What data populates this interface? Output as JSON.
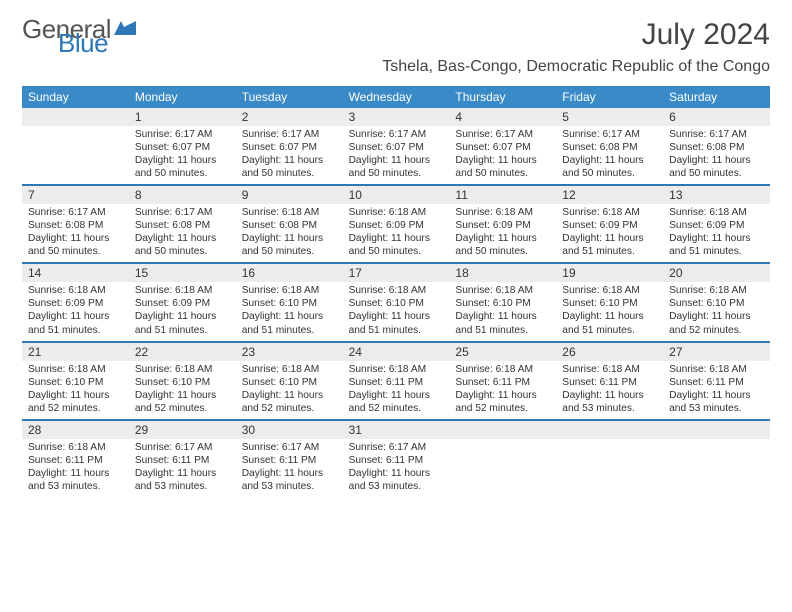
{
  "brand": {
    "part1": "General",
    "part2": "Blue"
  },
  "title": "July 2024",
  "location": "Tshela, Bas-Congo, Democratic Republic of the Congo",
  "colors": {
    "header_bg": "#3a8ac7",
    "border": "#2f78b8",
    "daynum_bg": "#ececec",
    "text": "#333333",
    "logo_gray": "#555555",
    "logo_blue": "#2f78b8",
    "background": "#ffffff"
  },
  "fonts": {
    "title_size_pt": 22,
    "location_size_pt": 12,
    "dow_size_pt": 9,
    "daynum_size_pt": 9,
    "info_size_pt": 7.5
  },
  "dow": [
    "Sunday",
    "Monday",
    "Tuesday",
    "Wednesday",
    "Thursday",
    "Friday",
    "Saturday"
  ],
  "weeks": [
    [
      {
        "n": "",
        "sr": "",
        "ss": "",
        "dl": ""
      },
      {
        "n": "1",
        "sr": "Sunrise: 6:17 AM",
        "ss": "Sunset: 6:07 PM",
        "dl": "Daylight: 11 hours and 50 minutes."
      },
      {
        "n": "2",
        "sr": "Sunrise: 6:17 AM",
        "ss": "Sunset: 6:07 PM",
        "dl": "Daylight: 11 hours and 50 minutes."
      },
      {
        "n": "3",
        "sr": "Sunrise: 6:17 AM",
        "ss": "Sunset: 6:07 PM",
        "dl": "Daylight: 11 hours and 50 minutes."
      },
      {
        "n": "4",
        "sr": "Sunrise: 6:17 AM",
        "ss": "Sunset: 6:07 PM",
        "dl": "Daylight: 11 hours and 50 minutes."
      },
      {
        "n": "5",
        "sr": "Sunrise: 6:17 AM",
        "ss": "Sunset: 6:08 PM",
        "dl": "Daylight: 11 hours and 50 minutes."
      },
      {
        "n": "6",
        "sr": "Sunrise: 6:17 AM",
        "ss": "Sunset: 6:08 PM",
        "dl": "Daylight: 11 hours and 50 minutes."
      }
    ],
    [
      {
        "n": "7",
        "sr": "Sunrise: 6:17 AM",
        "ss": "Sunset: 6:08 PM",
        "dl": "Daylight: 11 hours and 50 minutes."
      },
      {
        "n": "8",
        "sr": "Sunrise: 6:17 AM",
        "ss": "Sunset: 6:08 PM",
        "dl": "Daylight: 11 hours and 50 minutes."
      },
      {
        "n": "9",
        "sr": "Sunrise: 6:18 AM",
        "ss": "Sunset: 6:08 PM",
        "dl": "Daylight: 11 hours and 50 minutes."
      },
      {
        "n": "10",
        "sr": "Sunrise: 6:18 AM",
        "ss": "Sunset: 6:09 PM",
        "dl": "Daylight: 11 hours and 50 minutes."
      },
      {
        "n": "11",
        "sr": "Sunrise: 6:18 AM",
        "ss": "Sunset: 6:09 PM",
        "dl": "Daylight: 11 hours and 50 minutes."
      },
      {
        "n": "12",
        "sr": "Sunrise: 6:18 AM",
        "ss": "Sunset: 6:09 PM",
        "dl": "Daylight: 11 hours and 51 minutes."
      },
      {
        "n": "13",
        "sr": "Sunrise: 6:18 AM",
        "ss": "Sunset: 6:09 PM",
        "dl": "Daylight: 11 hours and 51 minutes."
      }
    ],
    [
      {
        "n": "14",
        "sr": "Sunrise: 6:18 AM",
        "ss": "Sunset: 6:09 PM",
        "dl": "Daylight: 11 hours and 51 minutes."
      },
      {
        "n": "15",
        "sr": "Sunrise: 6:18 AM",
        "ss": "Sunset: 6:09 PM",
        "dl": "Daylight: 11 hours and 51 minutes."
      },
      {
        "n": "16",
        "sr": "Sunrise: 6:18 AM",
        "ss": "Sunset: 6:10 PM",
        "dl": "Daylight: 11 hours and 51 minutes."
      },
      {
        "n": "17",
        "sr": "Sunrise: 6:18 AM",
        "ss": "Sunset: 6:10 PM",
        "dl": "Daylight: 11 hours and 51 minutes."
      },
      {
        "n": "18",
        "sr": "Sunrise: 6:18 AM",
        "ss": "Sunset: 6:10 PM",
        "dl": "Daylight: 11 hours and 51 minutes."
      },
      {
        "n": "19",
        "sr": "Sunrise: 6:18 AM",
        "ss": "Sunset: 6:10 PM",
        "dl": "Daylight: 11 hours and 51 minutes."
      },
      {
        "n": "20",
        "sr": "Sunrise: 6:18 AM",
        "ss": "Sunset: 6:10 PM",
        "dl": "Daylight: 11 hours and 52 minutes."
      }
    ],
    [
      {
        "n": "21",
        "sr": "Sunrise: 6:18 AM",
        "ss": "Sunset: 6:10 PM",
        "dl": "Daylight: 11 hours and 52 minutes."
      },
      {
        "n": "22",
        "sr": "Sunrise: 6:18 AM",
        "ss": "Sunset: 6:10 PM",
        "dl": "Daylight: 11 hours and 52 minutes."
      },
      {
        "n": "23",
        "sr": "Sunrise: 6:18 AM",
        "ss": "Sunset: 6:10 PM",
        "dl": "Daylight: 11 hours and 52 minutes."
      },
      {
        "n": "24",
        "sr": "Sunrise: 6:18 AM",
        "ss": "Sunset: 6:11 PM",
        "dl": "Daylight: 11 hours and 52 minutes."
      },
      {
        "n": "25",
        "sr": "Sunrise: 6:18 AM",
        "ss": "Sunset: 6:11 PM",
        "dl": "Daylight: 11 hours and 52 minutes."
      },
      {
        "n": "26",
        "sr": "Sunrise: 6:18 AM",
        "ss": "Sunset: 6:11 PM",
        "dl": "Daylight: 11 hours and 53 minutes."
      },
      {
        "n": "27",
        "sr": "Sunrise: 6:18 AM",
        "ss": "Sunset: 6:11 PM",
        "dl": "Daylight: 11 hours and 53 minutes."
      }
    ],
    [
      {
        "n": "28",
        "sr": "Sunrise: 6:18 AM",
        "ss": "Sunset: 6:11 PM",
        "dl": "Daylight: 11 hours and 53 minutes."
      },
      {
        "n": "29",
        "sr": "Sunrise: 6:17 AM",
        "ss": "Sunset: 6:11 PM",
        "dl": "Daylight: 11 hours and 53 minutes."
      },
      {
        "n": "30",
        "sr": "Sunrise: 6:17 AM",
        "ss": "Sunset: 6:11 PM",
        "dl": "Daylight: 11 hours and 53 minutes."
      },
      {
        "n": "31",
        "sr": "Sunrise: 6:17 AM",
        "ss": "Sunset: 6:11 PM",
        "dl": "Daylight: 11 hours and 53 minutes."
      },
      {
        "n": "",
        "sr": "",
        "ss": "",
        "dl": ""
      },
      {
        "n": "",
        "sr": "",
        "ss": "",
        "dl": ""
      },
      {
        "n": "",
        "sr": "",
        "ss": "",
        "dl": ""
      }
    ]
  ]
}
